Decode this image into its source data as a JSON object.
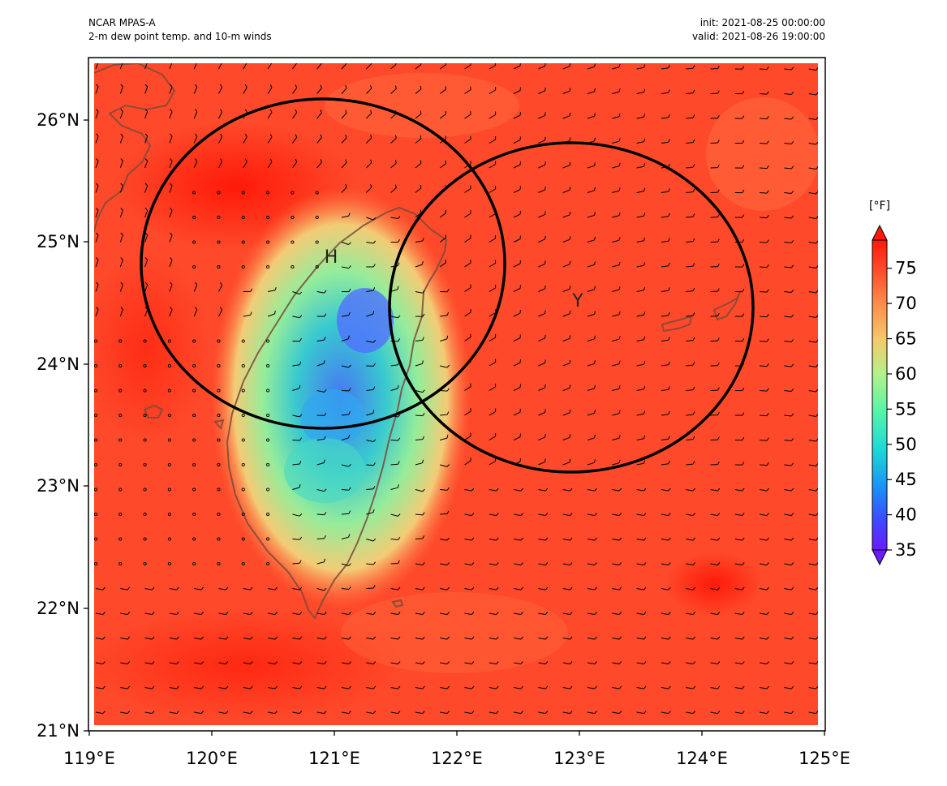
{
  "header": {
    "model": "NCAR MPAS-A",
    "field": "2-m dew point temp. and 10-m winds",
    "init": "init: 2021-08-25 00:00:00",
    "valid": "valid: 2021-08-26 19:00:00"
  },
  "map": {
    "lon_range": [
      119,
      125
    ],
    "lat_range": [
      21,
      26.5
    ],
    "x_ticks": [
      "119°E",
      "120°E",
      "121°E",
      "122°E",
      "123°E",
      "124°E",
      "125°E"
    ],
    "y_ticks": [
      "21°N",
      "22°N",
      "23°N",
      "24°N",
      "25°N",
      "26°N"
    ],
    "markers": [
      {
        "label": "H",
        "lon": 120.9,
        "lat": 24.85
      },
      {
        "label": "Y",
        "lon": 122.95,
        "lat": 24.5
      }
    ],
    "circles": [
      {
        "center_lon": 120.92,
        "center_lat": 24.83,
        "description": "black outline around H"
      },
      {
        "center_lon": 122.94,
        "center_lat": 24.47,
        "description": "black outline around Y"
      }
    ]
  },
  "colorbar": {
    "unit": "[°F]",
    "min": 35,
    "max": 79,
    "extend": "both",
    "ticks": [
      "35",
      "40",
      "45",
      "50",
      "55",
      "60",
      "65",
      "70",
      "75"
    ]
  },
  "colors": {
    "warm_background": "#fe4a2a",
    "hot": "#ff2a10",
    "land_outline": "#7a4a3a",
    "circle": "#000000"
  }
}
